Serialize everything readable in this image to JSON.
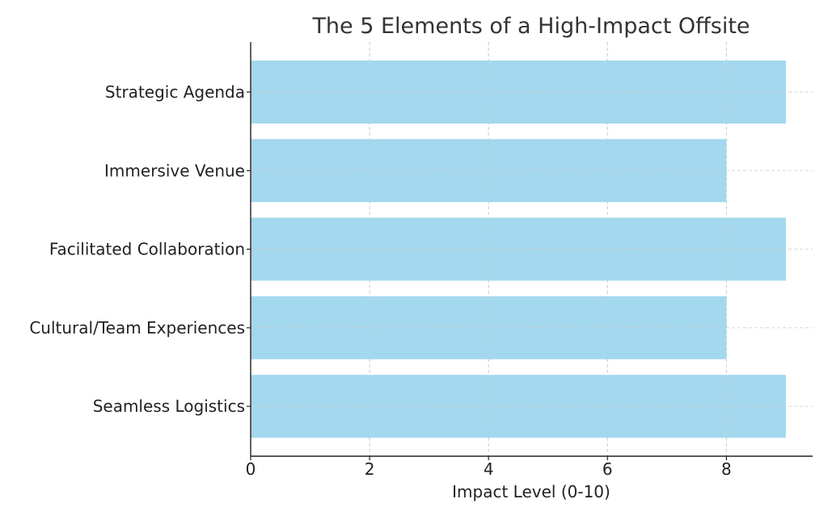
{
  "chart_data": {
    "type": "bar",
    "orientation": "horizontal",
    "title": "The 5 Elements of a High-Impact Offsite",
    "xlabel": "Impact Level (0-10)",
    "ylabel": "",
    "categories": [
      "Strategic Agenda",
      "Immersive Venue",
      "Facilitated Collaboration",
      "Cultural/Team Experiences",
      "Seamless Logistics"
    ],
    "values": [
      9,
      8,
      9,
      8,
      9
    ],
    "xlim": [
      0,
      9.45
    ],
    "xticks": [
      0,
      2,
      4,
      6,
      8
    ],
    "grid": true,
    "legend": "none",
    "colors": {
      "bar": "#a3d8ee",
      "grid": "#cccccc",
      "axis": "#222222",
      "text": "#222222",
      "title": "#333333"
    }
  }
}
